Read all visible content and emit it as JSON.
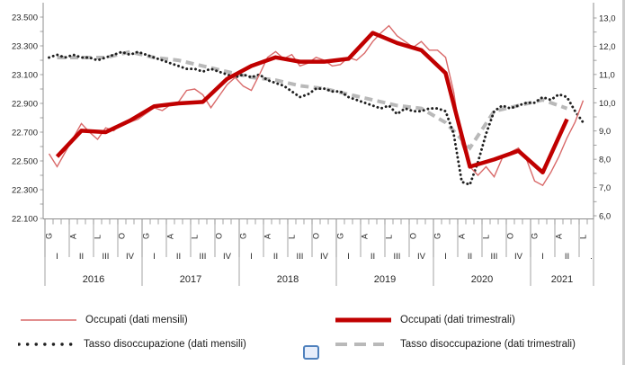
{
  "page": {
    "background": "#ffffff"
  },
  "chart_data": {
    "type": "line",
    "title": "",
    "grid": false,
    "left_axis": {
      "side": "left",
      "min": 22.1,
      "max": 23.5,
      "minor_step": 0.1,
      "labels": [
        "23.500",
        "23.300",
        "23.100",
        "22.900",
        "22.700",
        "22.500",
        "22.300",
        "22.100"
      ],
      "label_values": [
        23.5,
        23.3,
        23.1,
        22.9,
        22.7,
        22.5,
        22.3,
        22.1
      ]
    },
    "right_axis": {
      "side": "right",
      "min": 6.0,
      "max": 13.0,
      "minor_step": 0.5,
      "labels": [
        "13,0",
        "12,0",
        "11,0",
        "10,0",
        "9,0",
        "8,0",
        "7,0",
        "6,0"
      ],
      "label_values": [
        13,
        12,
        11,
        10,
        9,
        8,
        7,
        6
      ]
    },
    "x_axis": {
      "start": "2016-01",
      "end": "2021-07",
      "years": [
        "2016",
        "2017",
        "2018",
        "2019",
        "2020",
        "2021"
      ],
      "month_tick_labels": [
        "G",
        "A",
        "L",
        "O"
      ],
      "months_2021": [
        "G",
        "A",
        "L"
      ],
      "quarter_labels": [
        "I",
        "II",
        "III",
        "IV"
      ],
      "quarters_2021": [
        "I",
        "II",
        "."
      ]
    },
    "series": [
      {
        "id": "occupati-mensili",
        "name": "Occupati (dati mensili)",
        "axis": "left",
        "cadence": "monthly",
        "line": "thin",
        "color": "#d96a6a",
        "values": [
          22.55,
          22.46,
          22.56,
          22.66,
          22.76,
          22.7,
          22.65,
          22.73,
          22.71,
          22.76,
          22.77,
          22.79,
          22.83,
          22.87,
          22.85,
          22.89,
          22.91,
          22.99,
          23.0,
          22.96,
          22.87,
          22.95,
          23.03,
          23.08,
          23.02,
          22.99,
          23.1,
          23.22,
          23.26,
          23.21,
          23.24,
          23.16,
          23.18,
          23.22,
          23.2,
          23.16,
          23.17,
          23.22,
          23.2,
          23.25,
          23.33,
          23.39,
          23.44,
          23.37,
          23.33,
          23.29,
          23.33,
          23.27,
          23.27,
          23.22,
          22.98,
          22.62,
          22.46,
          22.4,
          22.46,
          22.39,
          22.52,
          22.56,
          22.59,
          22.51,
          22.36,
          22.33,
          22.42,
          22.53,
          22.66,
          22.77,
          22.92
        ]
      },
      {
        "id": "occupati-trimestrali",
        "name": "Occupati (dati trimestrali)",
        "axis": "left",
        "cadence": "quarterly",
        "line": "thick",
        "color": "#c00000",
        "values": [
          22.53,
          22.71,
          22.7,
          22.78,
          22.88,
          22.9,
          22.91,
          23.07,
          23.16,
          23.22,
          23.19,
          23.19,
          23.21,
          23.39,
          23.32,
          23.27,
          23.11,
          22.46,
          22.51,
          22.57,
          22.42,
          22.79
        ]
      },
      {
        "id": "tasso-disoccupazione-mensile",
        "name": "Tasso disoccupazione (dati mensili)",
        "axis": "right",
        "cadence": "monthly",
        "line": "dotted",
        "color": "#1f1f1f",
        "values": [
          11.6,
          11.7,
          11.6,
          11.7,
          11.6,
          11.6,
          11.5,
          11.6,
          11.7,
          11.8,
          11.7,
          11.8,
          11.7,
          11.6,
          11.5,
          11.4,
          11.3,
          11.2,
          11.2,
          11.1,
          11.2,
          11.1,
          11.0,
          10.9,
          11.0,
          10.9,
          11.0,
          10.8,
          10.7,
          10.6,
          10.4,
          10.2,
          10.3,
          10.5,
          10.5,
          10.4,
          10.4,
          10.2,
          10.1,
          10.0,
          9.9,
          9.8,
          9.9,
          9.6,
          9.8,
          9.7,
          9.7,
          9.8,
          9.8,
          9.7,
          8.9,
          7.2,
          7.1,
          7.9,
          8.9,
          9.7,
          9.9,
          9.8,
          9.9,
          10.0,
          10.0,
          10.2,
          10.1,
          10.3,
          10.2,
          9.7,
          9.3
        ]
      },
      {
        "id": "tasso-disoccupazione-trimestrale",
        "name": "Tasso disoccupazione (dati trimestrali)",
        "axis": "right",
        "cadence": "quarterly",
        "line": "dashed",
        "color": "#b9b9b9",
        "values": [
          11.6,
          11.6,
          11.6,
          11.8,
          11.6,
          11.5,
          11.3,
          11.1,
          10.9,
          10.8,
          10.6,
          10.5,
          10.3,
          10.1,
          9.9,
          9.8,
          9.3,
          8.4,
          9.7,
          9.9,
          10.1,
          9.8
        ]
      }
    ]
  },
  "legend": {
    "items": [
      {
        "label": "Occupati (dati mensili)",
        "series": "occupati-mensili"
      },
      {
        "label": "Occupati (dati trimestrali)",
        "series": "occupati-trimestrali"
      },
      {
        "label": "Tasso disoccupazione (dati mensili)",
        "series": "tasso-disoccupazione-mensile"
      },
      {
        "label": "Tasso disoccupazione (dati trimestrali)",
        "series": "tasso-disoccupazione-trimestrale"
      }
    ]
  },
  "colors": {
    "quarterly_employed": "#c00000",
    "monthly_employed": "#d96a6a",
    "monthly_rate": "#1f1f1f",
    "quarterly_rate": "#b9b9b9",
    "axis": "#8c8c8c",
    "text": "#262626"
  }
}
